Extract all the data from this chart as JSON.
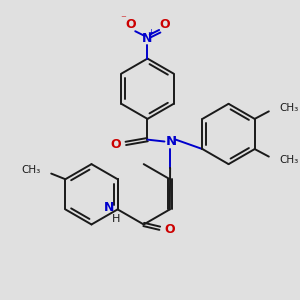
{
  "bg_color": "#e0e0e0",
  "bond_color": "#1a1a1a",
  "nitrogen_color": "#0000cc",
  "oxygen_color": "#cc0000",
  "lw": 1.4,
  "dbo": 0.008,
  "fig_size": [
    3.0,
    3.0
  ],
  "dpi": 100,
  "xlim": [
    0,
    300
  ],
  "ylim": [
    0,
    300
  ]
}
